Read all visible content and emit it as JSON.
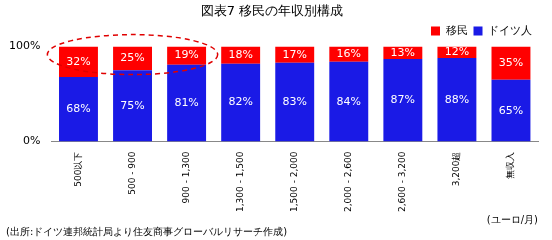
{
  "chart_data": {
    "type": "bar",
    "title": "図表7 移民の年収別構成",
    "categories": [
      "500以下",
      "500 - 900",
      "900 - 1,300",
      "1,300 - 1,500",
      "1,500 - 2,000",
      "2,000 - 2,600",
      "2,600 - 3,200",
      "3,200超",
      "無収入"
    ],
    "series": [
      {
        "name": "移民",
        "color": "#ff0000",
        "values": [
          32,
          25,
          19,
          18,
          17,
          16,
          13,
          12,
          35
        ],
        "value_labels": [
          "32%",
          "25%",
          "19%",
          "18%",
          "17%",
          "16%",
          "13%",
          "12%",
          "35%"
        ]
      },
      {
        "name": "ドイツ人",
        "color": "#1a1ae6",
        "values": [
          68,
          75,
          81,
          82,
          83,
          84,
          87,
          88,
          65
        ],
        "value_labels": [
          "68%",
          "75%",
          "81%",
          "82%",
          "83%",
          "84%",
          "87%",
          "88%",
          "65%"
        ]
      }
    ],
    "ylim": [
      0,
      100
    ],
    "yticks": [
      {
        "value": 0,
        "label": "0%"
      },
      {
        "value": 100,
        "label": "100%"
      }
    ],
    "x_label": "(ユーロ/月)",
    "source": "(出所:ドイツ連邦統計局より住友商事グローバルリサーチ作成)",
    "stacked": true,
    "data_labels": true,
    "grid": false,
    "legend": "top-right"
  }
}
